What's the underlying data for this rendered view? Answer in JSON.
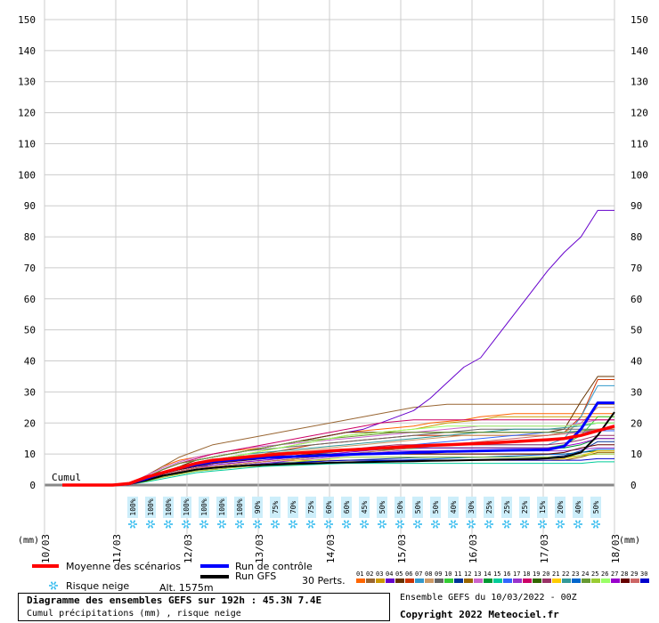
{
  "chart_data": {
    "type": "line",
    "x_labels": [
      "10/03",
      "11/03",
      "12/03",
      "13/03",
      "14/03",
      "15/03",
      "16/03",
      "17/03",
      "18/03"
    ],
    "y_ticks": [
      0,
      10,
      20,
      30,
      40,
      50,
      60,
      70,
      80,
      90,
      100,
      110,
      120,
      130,
      140,
      150
    ],
    "ylim": [
      0,
      150
    ],
    "x_unit_label": "(mm)",
    "cumul_label": "Cumul",
    "grid": true,
    "snow_risk": [
      "100%",
      "100%",
      "100%",
      "100%",
      "100%",
      "100%",
      "100%",
      "90%",
      "75%",
      "70%",
      "75%",
      "60%",
      "60%",
      "45%",
      "50%",
      "50%",
      "50%",
      "50%",
      "40%",
      "30%",
      "25%",
      "25%",
      "25%",
      "15%",
      "20%",
      "40%",
      "50%"
    ],
    "mean_series": [
      0,
      0,
      0,
      0,
      0.5,
      2.5,
      4,
      5.5,
      7,
      8,
      8.5,
      9,
      9.5,
      10,
      10.3,
      10.6,
      11,
      11.3,
      11.6,
      11.9,
      12.2,
      12.5,
      12.8,
      13,
      13.2,
      13.4,
      13.7,
      14,
      14.3,
      14.6,
      15,
      16,
      17.5,
      19
    ],
    "control_series": [
      0,
      0,
      0,
      0,
      0.4,
      2,
      4,
      5.5,
      6.5,
      7.5,
      8,
      8.5,
      8.8,
      9,
      9.2,
      9.4,
      9.6,
      9.8,
      10,
      10.1,
      10.3,
      10.5,
      10.6,
      10.8,
      10.9,
      11,
      11.1,
      11.2,
      11.3,
      11.4,
      12.5,
      18,
      26.5,
      26.5
    ],
    "gfs_series": [
      0,
      0,
      0,
      0,
      0.3,
      1.5,
      3,
      4,
      5,
      5.5,
      6,
      6.3,
      6.5,
      6.7,
      6.9,
      7,
      7.2,
      7.3,
      7.4,
      7.5,
      7.6,
      7.7,
      7.8,
      7.9,
      8,
      8.1,
      8.2,
      8.3,
      8.4,
      8.6,
      9,
      10.5,
      16,
      23.5
    ],
    "perturbations": [
      [
        0,
        0,
        0,
        0,
        0.5,
        3,
        6,
        8,
        9,
        10,
        11,
        11.5,
        12,
        13,
        14,
        15,
        16,
        17,
        17.5,
        18,
        18.5,
        19,
        20,
        20.5,
        21,
        22,
        22.5,
        23,
        23,
        23,
        23,
        23,
        23,
        23
      ],
      [
        0,
        0,
        0,
        0,
        0.5,
        3,
        6,
        9,
        11,
        13,
        14,
        15,
        16,
        17,
        18,
        19,
        20,
        21,
        22,
        23,
        24,
        25,
        25.5,
        26,
        26,
        26,
        26,
        26,
        26,
        26,
        26,
        26,
        26,
        26
      ],
      [
        0,
        0,
        0,
        0,
        0.5,
        2,
        4,
        6,
        7,
        8,
        9,
        10,
        11,
        12,
        13,
        14,
        15,
        16,
        16.5,
        17,
        17.5,
        18,
        19,
        20,
        20.5,
        21,
        22,
        22,
        22,
        22,
        22,
        22,
        22,
        22
      ],
      [
        0,
        0,
        0,
        0,
        0.5,
        2,
        5,
        7,
        8,
        9,
        10,
        11,
        12,
        13,
        14,
        15,
        16,
        17,
        18,
        20,
        22,
        24,
        28,
        33,
        38,
        41,
        48,
        55,
        62,
        69,
        75,
        80,
        88.5,
        88.5
      ],
      [
        0,
        0,
        0,
        0,
        0.3,
        2,
        4,
        6,
        8,
        9,
        10,
        11,
        12,
        13,
        14,
        15,
        16,
        17,
        17,
        17,
        17,
        17,
        17,
        17,
        17,
        17,
        17,
        17,
        17,
        17,
        18,
        27,
        35,
        35
      ],
      [
        0,
        0,
        0,
        0,
        0.4,
        2,
        4,
        5,
        6,
        7,
        8,
        9,
        10,
        11,
        12,
        13,
        13.5,
        14,
        14.5,
        15,
        15.5,
        16,
        16,
        16,
        16,
        16,
        16,
        16,
        16,
        16,
        17,
        22,
        34,
        34
      ],
      [
        0,
        0,
        0,
        0,
        0.3,
        2,
        3.5,
        5,
        6,
        6.5,
        7,
        7.5,
        8,
        8.5,
        9,
        9.5,
        10,
        10.5,
        11,
        11.5,
        12,
        12.5,
        13,
        13,
        13,
        13,
        13,
        13,
        13,
        13,
        15,
        22,
        32,
        32
      ],
      [
        0,
        0,
        0,
        0,
        0.4,
        2,
        4,
        6,
        7,
        8,
        9,
        9.5,
        10,
        10.5,
        11,
        11.5,
        12,
        12.5,
        13,
        13.5,
        14,
        14.5,
        15,
        15.5,
        16,
        16,
        16,
        16,
        16,
        16,
        17,
        20,
        25,
        25
      ],
      [
        0,
        0,
        0,
        0,
        0.4,
        2.5,
        5,
        7,
        8,
        9,
        10,
        11,
        11.5,
        12,
        12.5,
        13,
        13.5,
        14,
        14.5,
        15,
        15.5,
        16,
        16.5,
        17,
        17.5,
        18,
        18,
        18,
        18,
        18,
        18,
        18,
        18,
        18
      ],
      [
        0,
        0,
        0,
        0,
        0.3,
        1.5,
        3,
        4.5,
        5.5,
        6,
        6.5,
        7,
        7.5,
        8,
        8.5,
        9,
        9.5,
        10,
        10.5,
        11,
        11.5,
        12,
        12,
        12,
        12,
        12,
        12,
        12,
        12,
        12,
        13,
        16,
        22,
        22
      ],
      [
        0,
        0,
        0,
        0,
        0.3,
        1.5,
        3,
        4,
        5,
        5.5,
        6,
        6.5,
        7,
        7.2,
        7.4,
        7.6,
        7.8,
        8,
        8.2,
        8.4,
        8.6,
        8.8,
        9,
        9,
        9,
        9,
        9,
        9,
        9,
        9,
        9.5,
        11,
        14,
        14
      ],
      [
        0,
        0,
        0,
        0,
        0.3,
        1.5,
        2.5,
        3.5,
        4.5,
        5,
        5.5,
        6,
        6.2,
        6.4,
        6.6,
        6.8,
        7,
        7.2,
        7.4,
        7.6,
        7.8,
        8,
        8,
        8,
        8,
        8,
        8,
        8,
        8,
        8,
        8,
        9,
        10.5,
        10.5
      ],
      [
        0,
        0,
        0,
        0,
        0.5,
        3,
        5.5,
        7.5,
        9,
        10,
        11,
        12,
        12.5,
        13,
        13.5,
        14,
        14.5,
        15,
        15.5,
        16,
        16.5,
        17,
        17.5,
        18,
        18.5,
        19,
        19,
        19,
        19,
        19,
        19,
        20,
        21,
        21
      ],
      [
        0,
        0,
        0,
        0,
        0.4,
        2,
        4,
        5.5,
        6.5,
        7,
        7.5,
        8,
        8.5,
        9,
        9.5,
        10,
        10.5,
        11,
        11.2,
        11.4,
        11.6,
        11.8,
        12,
        12,
        12,
        12,
        12,
        12,
        12,
        12,
        12,
        13,
        15,
        15
      ],
      [
        0,
        0,
        0,
        0,
        0.3,
        1,
        2,
        3,
        4,
        4.5,
        5,
        5.5,
        6,
        6.2,
        6.4,
        6.6,
        6.8,
        7,
        7,
        7,
        7,
        7,
        7,
        7,
        7,
        7,
        7,
        7,
        7,
        7,
        7,
        7,
        7.5,
        7.5
      ],
      [
        0,
        0,
        0,
        0,
        0.4,
        2,
        3.5,
        5,
        6,
        7,
        7.5,
        8,
        8.5,
        9,
        9.5,
        10,
        10.5,
        11,
        11.5,
        12,
        12.5,
        13,
        13.5,
        14,
        14.5,
        15,
        15.5,
        16,
        16.5,
        17,
        17,
        17,
        17.5,
        17.5
      ],
      [
        0,
        0,
        0,
        0,
        0.3,
        1.5,
        3,
        4,
        5,
        5.5,
        6,
        6.5,
        7,
        7.5,
        8,
        8.5,
        9,
        9.5,
        10,
        10.5,
        11,
        11,
        11,
        11,
        11,
        11,
        11,
        11,
        11,
        11,
        11,
        11.5,
        12,
        12
      ],
      [
        0,
        0,
        0,
        0,
        0.5,
        2.5,
        5,
        7,
        8.5,
        10,
        11,
        12,
        13,
        14,
        15,
        16,
        17,
        18,
        19,
        20,
        20.5,
        21,
        21,
        21,
        21,
        21,
        21,
        21,
        21,
        21,
        21,
        21,
        21,
        21
      ],
      [
        0,
        0,
        0,
        0,
        0.3,
        1.5,
        3,
        4.5,
        5.5,
        6,
        6.5,
        7,
        7.5,
        8,
        8.5,
        9,
        9.5,
        10,
        10,
        10,
        10,
        10,
        10,
        10,
        10,
        10,
        10,
        10,
        10,
        10,
        10,
        10.5,
        11,
        11
      ],
      [
        0,
        0,
        0,
        0,
        0.4,
        2,
        4,
        5.5,
        6.5,
        7.5,
        8,
        8.5,
        9,
        9.5,
        10,
        10.5,
        11,
        11.5,
        12,
        12.5,
        13,
        13,
        13,
        13,
        13,
        13,
        13,
        13,
        13,
        13,
        13.5,
        14.5,
        16,
        16
      ],
      [
        0,
        0,
        0,
        0,
        0.3,
        1.5,
        3,
        4.5,
        5.5,
        6,
        6.5,
        7,
        7.5,
        8,
        8,
        8,
        8,
        8,
        8,
        8,
        8,
        8,
        8,
        8,
        8,
        8,
        8,
        8,
        8,
        8,
        8.5,
        9.5,
        11,
        11
      ],
      [
        0,
        0,
        0,
        0,
        0.4,
        2,
        4,
        6,
        7,
        8,
        9,
        10,
        10.5,
        11,
        11.5,
        12,
        12.5,
        13,
        13.5,
        14,
        14.5,
        15,
        15.5,
        16,
        16.5,
        17,
        17.5,
        18,
        18,
        18,
        18.5,
        19,
        20,
        20
      ],
      [
        0,
        0,
        0,
        0,
        0.3,
        1.5,
        3,
        4,
        5,
        5.5,
        6,
        6.2,
        6.4,
        6.6,
        6.8,
        7,
        7.2,
        7.4,
        7.6,
        7.8,
        8,
        8.2,
        8.4,
        8.6,
        8.8,
        9,
        9.2,
        9.4,
        9.6,
        9.8,
        10,
        10.5,
        11.5,
        11.5
      ],
      [
        0,
        0,
        0,
        0,
        0.4,
        2.5,
        5,
        7,
        8,
        9,
        10,
        11,
        12,
        13,
        14,
        14.5,
        15,
        15.5,
        16,
        16.5,
        17,
        17,
        17,
        17,
        17,
        17,
        17,
        17,
        17,
        17,
        17,
        17.5,
        18,
        18
      ],
      [
        0,
        0,
        0,
        0,
        0.3,
        1.2,
        2.5,
        3.5,
        4.5,
        5,
        5.5,
        6,
        6.5,
        7,
        7.5,
        8,
        8.5,
        9,
        9,
        9,
        9,
        9,
        9,
        9,
        9,
        9,
        9,
        9,
        9,
        9,
        9,
        9.5,
        10,
        10
      ],
      [
        0,
        0,
        0,
        0,
        0.4,
        2,
        4,
        6,
        7,
        8,
        9,
        10,
        11,
        12,
        13,
        14,
        15,
        16,
        16.5,
        17,
        17.5,
        18,
        18.5,
        19,
        19,
        19,
        19,
        19,
        19,
        19,
        19,
        19.5,
        20,
        20
      ],
      [
        0,
        0,
        0,
        0,
        0.3,
        1.5,
        3,
        4.5,
        5.5,
        6.5,
        7,
        7.5,
        8,
        8.5,
        9,
        9.5,
        10,
        10.5,
        11,
        11.5,
        12,
        12,
        12,
        12,
        12,
        12,
        12,
        12,
        12,
        12,
        12.5,
        13.5,
        15,
        15
      ],
      [
        0,
        0,
        0,
        0,
        0.4,
        2,
        3.5,
        5,
        6,
        7,
        7.5,
        8,
        8.5,
        9,
        9.5,
        10,
        10,
        10,
        10,
        10,
        10,
        10,
        10,
        10,
        10,
        10,
        10,
        10,
        10,
        10,
        10.5,
        12,
        13,
        13
      ],
      [
        0,
        0,
        0,
        0,
        0.3,
        1.5,
        3,
        4.5,
        5.5,
        6,
        6.5,
        7,
        7.5,
        8,
        8.5,
        9,
        9.5,
        10,
        10.5,
        11,
        11.5,
        12,
        12.5,
        13,
        13.5,
        14,
        14.5,
        15,
        15.5,
        16,
        16.5,
        17,
        18,
        18
      ],
      [
        0,
        0,
        0,
        0,
        0.3,
        1.5,
        3,
        4,
        5,
        5.5,
        6,
        6.3,
        6.6,
        6.9,
        7.2,
        7.5,
        7.8,
        8,
        8,
        8,
        8,
        8,
        8,
        8,
        8,
        8,
        8,
        8,
        8,
        8,
        8,
        8,
        8.5,
        8.5
      ]
    ],
    "legend": {
      "mean": "Moyenne des scénarios",
      "control": "Run de contrôle",
      "gfs": "Run GFS",
      "snow": "Risque neige",
      "altitude": "Alt. 1575m",
      "perts": "30 Perts."
    },
    "pert_labels": [
      "01",
      "02",
      "03",
      "04",
      "05",
      "06",
      "07",
      "08",
      "09",
      "10",
      "11",
      "12",
      "13",
      "14",
      "15",
      "16",
      "17",
      "18",
      "19",
      "20",
      "21",
      "22",
      "23",
      "24",
      "25",
      "26",
      "27",
      "28",
      "29",
      "30"
    ],
    "pert_colors": [
      "#ff6600",
      "#996633",
      "#cc9900",
      "#6600cc",
      "#663300",
      "#cc3300",
      "#3399cc",
      "#cc9966",
      "#666666",
      "#33cc33",
      "#003399",
      "#996600",
      "#cc66cc",
      "#009933",
      "#00cc99",
      "#3366ff",
      "#9933cc",
      "#cc0066",
      "#336600",
      "#993366",
      "#ffcc00",
      "#339999",
      "#0066cc",
      "#669933",
      "#99cc33",
      "#99ff66",
      "#9900cc",
      "#660000",
      "#cc6666",
      "#0000cc"
    ],
    "colors": {
      "mean": "#ff0000",
      "control": "#0000ff",
      "gfs": "#000000",
      "snow_icon": "#33bbee"
    }
  },
  "title_main": "Diagramme des ensembles GEFS sur 192h : 45.3N 7.4E",
  "title_sub": "Cumul précipitations (mm) , risque neige",
  "ensemble_text": "Ensemble GEFS du 10/03/2022 - 00Z",
  "copyright": "Copyright 2022 Meteociel.fr"
}
